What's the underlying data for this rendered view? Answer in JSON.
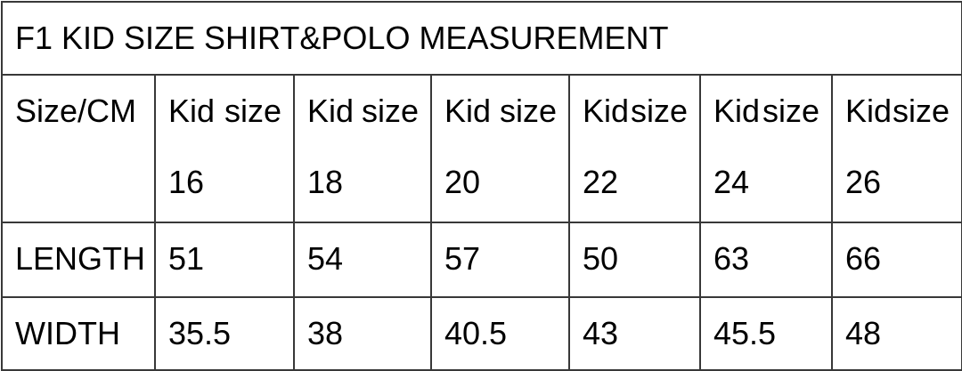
{
  "title": "F1 KID SIZE SHIRT&POLO MEASUREMENT",
  "table": {
    "corner_label": "Size/CM",
    "columns": [
      {
        "label": "Kid size",
        "number": "16"
      },
      {
        "label": "Kid size",
        "number": "18"
      },
      {
        "label": "Kid size",
        "number": "20"
      },
      {
        "label": "Kid size",
        "number": "22"
      },
      {
        "label": "Kid size",
        "number": "24"
      },
      {
        "label": "Kid size",
        "number": "26"
      }
    ],
    "rows": [
      {
        "label": "LENGTH",
        "values": [
          "51",
          "54",
          "57",
          "50",
          "63",
          "66"
        ]
      },
      {
        "label": "WIDTH",
        "values": [
          "35.5",
          "38",
          "40.5",
          "43",
          "45.5",
          "48"
        ]
      }
    ]
  },
  "colors": {
    "border": "#383838",
    "text": "#000000",
    "background": "#ffffff"
  }
}
